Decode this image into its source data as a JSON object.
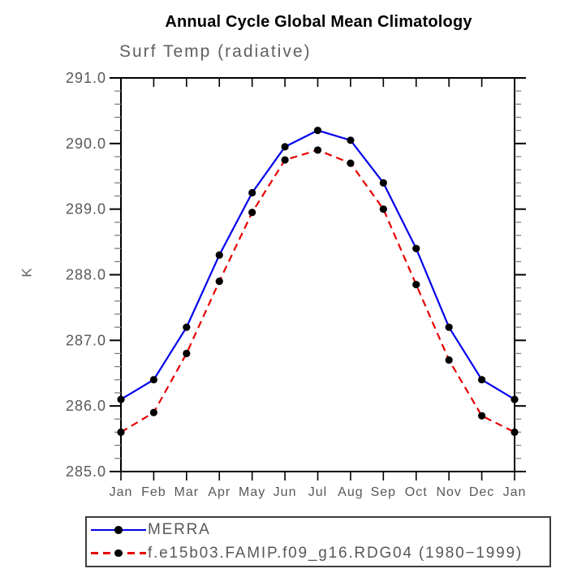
{
  "chart_data": {
    "type": "line",
    "title": "Annual Cycle Global Mean Climatology",
    "subtitle": "Surf Temp (radiative)",
    "ylabel": "K",
    "xlabel": "",
    "x_categories": [
      "Jan",
      "Feb",
      "Mar",
      "Apr",
      "May",
      "Jun",
      "Jul",
      "Aug",
      "Sep",
      "Oct",
      "Nov",
      "Dec",
      "Jan"
    ],
    "ylim": [
      285.0,
      291.0
    ],
    "ytick_interval": 1.0,
    "yminor_interval": 0.2,
    "ytick_labels": [
      "285.0",
      "286.0",
      "287.0",
      "288.0",
      "289.0",
      "290.0",
      "291.0"
    ],
    "grid": false,
    "legend_position": "bottom-left-box",
    "series": [
      {
        "name": "MERRA",
        "color": "#0000ee",
        "style": "solid",
        "marker": "filled-circle",
        "marker_color": "#000000",
        "values": [
          286.1,
          286.4,
          287.2,
          288.3,
          289.25,
          289.95,
          290.2,
          290.05,
          289.4,
          288.4,
          287.2,
          286.4,
          286.1
        ]
      },
      {
        "name": "f.e15b03.FAMIP.f09_g16.RDG04 (1980−1999)",
        "color": "#e60000",
        "style": "dashed",
        "marker": "filled-circle",
        "marker_color": "#000000",
        "values": [
          285.6,
          285.9,
          286.8,
          287.9,
          288.95,
          289.75,
          289.9,
          289.7,
          289.0,
          287.85,
          286.7,
          285.85,
          285.6
        ]
      }
    ],
    "frame_color": "#000000",
    "tick_label_color": "#585858"
  }
}
